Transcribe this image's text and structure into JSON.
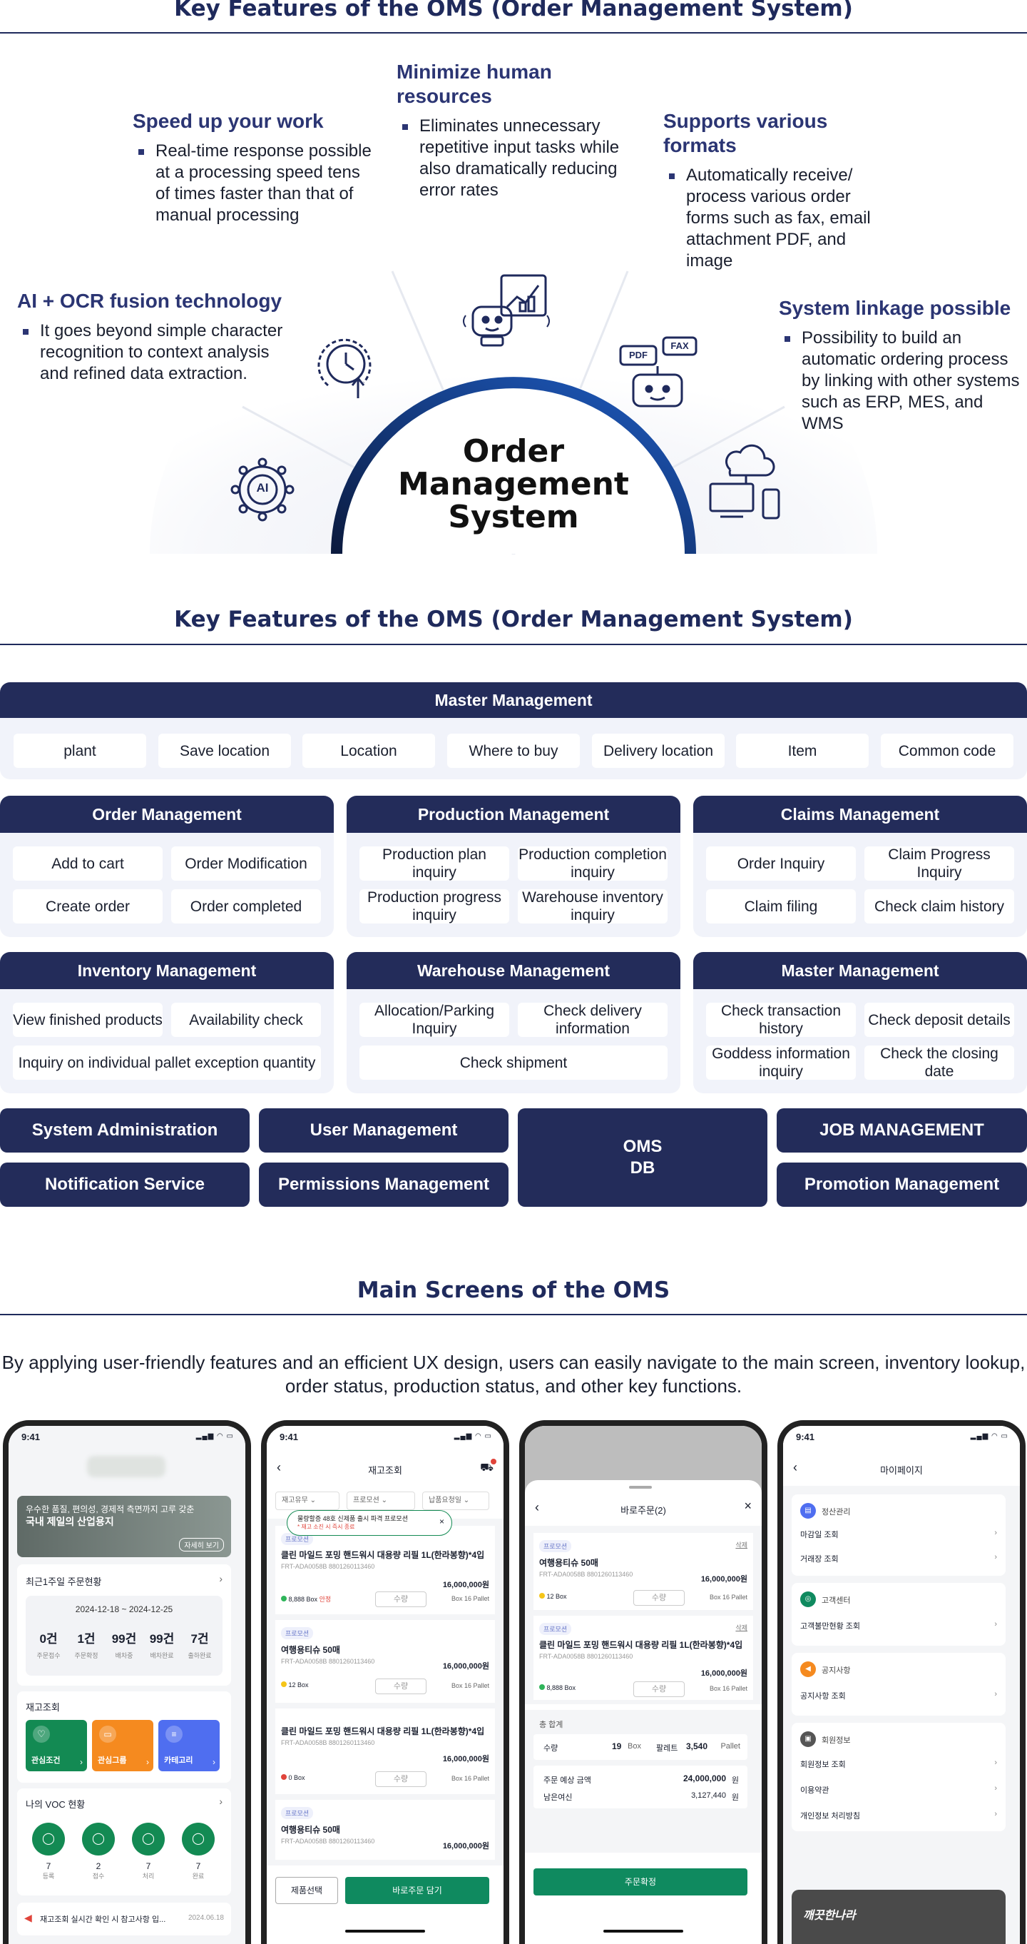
{
  "sections": {
    "s1_title": "Key Features of the OMS (Order Management System)",
    "s2_title": "Key Features of the OMS (Order Management System)",
    "s3_title": "Main Screens of the OMS",
    "s3_desc": "By applying user-friendly features and an efficient UX design, users can easily navigate to the main screen, inventory lookup, order status, production status, and other key functions."
  },
  "diagram": {
    "center_line1": "Order",
    "center_line2": "Management",
    "center_line3": "System",
    "ai_label": "AI",
    "pdf_label": "PDF",
    "fax_label": "FAX",
    "features": [
      {
        "title": "AI + OCR fusion technology",
        "text": "It goes beyond simple character recognition to context analysis and refined data extraction."
      },
      {
        "title": "Speed up your work",
        "text": "Real-time response possible at a processing speed tens of times faster than that of manual processing"
      },
      {
        "title": "Minimize human resources",
        "text": "Eliminates unnecessary repetitive input tasks while also dramatically reducing error rates"
      },
      {
        "title": "Supports various formats",
        "text": "Automatically receive/ process various order forms such as fax, email attachment PDF, and image"
      },
      {
        "title": "System linkage possible",
        "text": "Possibility to build an automatic ordering process by linking with other systems such as ERP, MES, and WMS"
      }
    ]
  },
  "grid": {
    "master": {
      "title": "Master Management",
      "items": [
        "plant",
        "Save location",
        "Location",
        "Where to buy",
        "Delivery location",
        "Item",
        "Common code"
      ]
    },
    "order": {
      "title": "Order Management",
      "items": [
        "Add to cart",
        "Order Modification",
        "Create order",
        "Order completed"
      ]
    },
    "production": {
      "title": "Production Management",
      "items": [
        "Production plan inquiry",
        "Production completion inquiry",
        "Production progress inquiry",
        "Warehouse inventory inquiry"
      ]
    },
    "claims": {
      "title": "Claims Management",
      "items": [
        "Order Inquiry",
        "Claim Progress Inquiry",
        "Claim filing",
        "Check claim history"
      ]
    },
    "inventory": {
      "title": "Inventory Management",
      "items": [
        "View finished products",
        "Availability check",
        "Inquiry on individual pallet exception quantity"
      ]
    },
    "warehouse": {
      "title": "Warehouse Management",
      "items": [
        "Allocation/Parking Inquiry",
        "Check delivery information",
        "Check shipment"
      ]
    },
    "master2": {
      "title": "Master Management",
      "items": [
        "Check transaction history",
        "Check deposit details",
        "Goddess information inquiry",
        "Check the closing date"
      ]
    },
    "bottom": {
      "sysadmin": "System Administration",
      "usermgmt": "User Management",
      "oms_db_1": "OMS",
      "oms_db_2": "DB",
      "job": "JOB MANAGEMENT",
      "notification": "Notification Service",
      "permissions": "Permissions Management",
      "promotion": "Promotion Management"
    }
  },
  "phones": {
    "time": "9:41",
    "p1": {
      "banner_small": "우수한 품질, 편의성, 경제적 측면까지 고루 갖춘",
      "banner_big": "국내 제일의 산업용지",
      "banner_link": "자세히 보기",
      "recent_title": "최근1주일 주문현황",
      "date_range": "2024-12-18 ~ 2024-12-25",
      "stats": [
        {
          "value": "0건",
          "label": "주문접수"
        },
        {
          "value": "1건",
          "label": "주문확정"
        },
        {
          "value": "99건",
          "label": "배차중"
        },
        {
          "value": "99건",
          "label": "배차완료"
        },
        {
          "value": "7건",
          "label": "출하완료"
        }
      ],
      "inventory_title": "재고조회",
      "cards": [
        "관심조건",
        "관심그룹",
        "카테고리"
      ],
      "voc_title": "나의 VOC 현황",
      "voc": [
        {
          "value": "7",
          "label": "등록"
        },
        {
          "value": "2",
          "label": "접수"
        },
        {
          "value": "7",
          "label": "처리"
        },
        {
          "value": "7",
          "label": "완료"
        }
      ],
      "notice": "재고조회 실시간 확인 시 참고사항 입...",
      "notice_date": "2024.06.18"
    },
    "p2": {
      "title": "재고조회",
      "filters": [
        "재고유무",
        "프로모션",
        "납품요청일"
      ],
      "tooltip1": "물량할증 48호 신제품 출시 파격 프로모션",
      "tooltip2": "* 재고 소진 시 즉시 종료",
      "tag": "프로모션",
      "items": [
        {
          "name": "클린 마일드 포밍 핸드워시 대용량 리필 1L(한라봉향)*4입",
          "code": "FRT-ADA0058B  8801260113460",
          "price": "16,000,000원",
          "stock": "8,888 Box",
          "extra": "안정",
          "qty": "수량",
          "unit": "Box  16 Pallet"
        },
        {
          "name": "여행용티슈 50매",
          "code": "FRT-ADA0058B  8801260113460",
          "price": "16,000,000원",
          "stock": "12 Box",
          "extra": "",
          "qty": "수량",
          "unit": "Box  16 Pallet"
        },
        {
          "name": "클린 마일드 포밍 핸드워시 대용량 리필 1L(한라봉향)*4입",
          "code": "FRT-ADA0058B  8801260113460",
          "price": "16,000,000원",
          "stock": "0 Box",
          "extra": "",
          "qty": "수량",
          "unit": "Box  16 Pallet"
        },
        {
          "name": "여행용티슈 50매",
          "code": "FRT-ADA0058B  8801260113460",
          "price": "16,000,000원",
          "stock": "",
          "extra": "",
          "qty": "",
          "unit": ""
        }
      ],
      "btn_select": "제품선택",
      "btn_add": "바로주문 담기"
    },
    "p3": {
      "title": "바로주문(2)",
      "tag": "프로모션",
      "delete": "삭제",
      "items": [
        {
          "name": "여행용티슈 50매",
          "code": "FRT-ADA0058B  8801260113460",
          "price": "16,000,000원",
          "stock": "12 Box",
          "qty": "수량",
          "unit": "Box  16 Pallet"
        },
        {
          "name": "클린 마일드 포밍 핸드워시 대용량 리필 1L(한라봉향)*4입",
          "code": "FRT-ADA0058B  8801260113460",
          "price": "16,000,000원",
          "stock": "8,888 Box",
          "qty": "수량",
          "unit": "Box  16 Pallet"
        }
      ],
      "total_title": "총 합계",
      "qty_label": "수량",
      "qty_value": "19",
      "qty_unit": "Box",
      "pallet_label": "팔레트",
      "pallet_value": "3,540",
      "pallet_unit": "Pallet",
      "amount_label": "주문 예상 금액",
      "amount_value": "24,000,000",
      "credit_label": "남은여신",
      "credit_value": "3,127,440",
      "won": "원",
      "confirm": "주문확정"
    },
    "p4": {
      "title": "마이페이지",
      "groups": [
        {
          "title": "정산관리",
          "items": [
            "마감일 조회",
            "거래장 조회"
          ]
        },
        {
          "title": "고객센터",
          "items": [
            "고객불만현황 조회"
          ]
        },
        {
          "title": "공지사항",
          "items": [
            "공지사항 조회"
          ]
        },
        {
          "title": "회원정보",
          "items": [
            "회원정보 조회",
            "이용약관",
            "개인정보 처리방침"
          ]
        }
      ],
      "brand": "깨끗한나라"
    }
  },
  "colors": {
    "navy": "#232c5a",
    "green": "#0f8a5f",
    "blue_arc": "#1e4fa8"
  }
}
